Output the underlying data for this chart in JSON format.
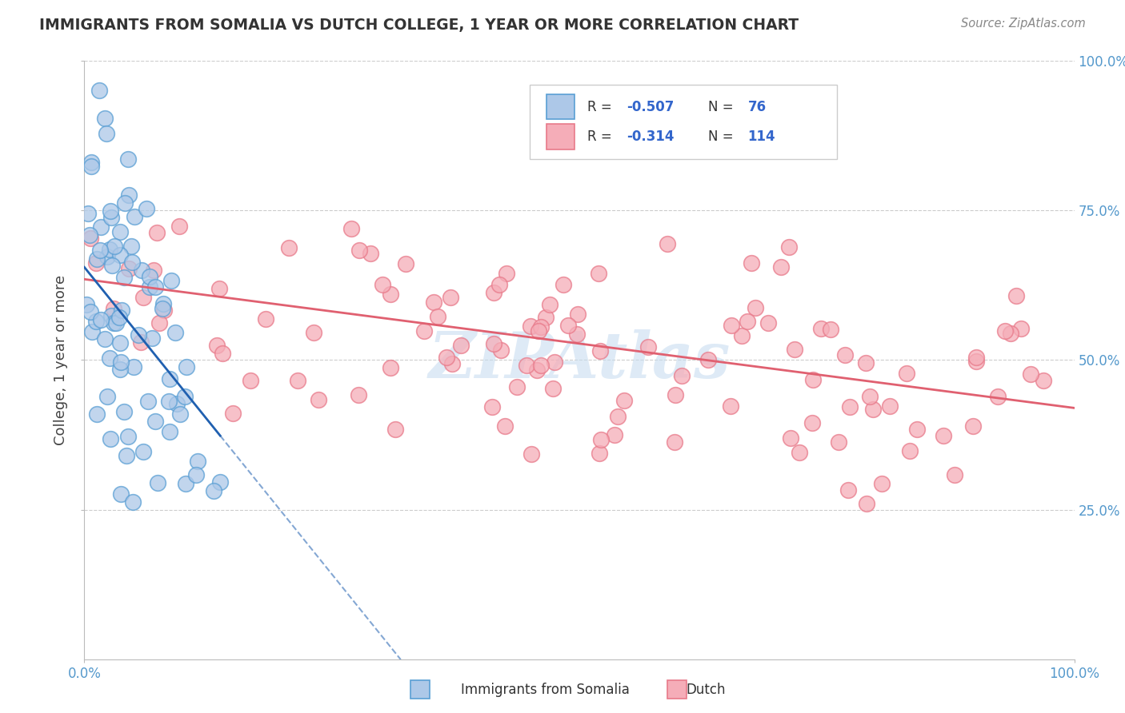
{
  "title": "IMMIGRANTS FROM SOMALIA VS DUTCH COLLEGE, 1 YEAR OR MORE CORRELATION CHART",
  "source": "Source: ZipAtlas.com",
  "ylabel": "College, 1 year or more",
  "xlim": [
    0.0,
    1.0
  ],
  "ylim": [
    0.0,
    1.0
  ],
  "x_ticks": [
    0.0,
    1.0
  ],
  "x_tick_labels": [
    "0.0%",
    "100.0%"
  ],
  "y_ticks": [
    0.25,
    0.5,
    0.75,
    1.0
  ],
  "y_tick_labels": [
    "25.0%",
    "50.0%",
    "75.0%",
    "100.0%"
  ],
  "legend_somalia_R": "-0.507",
  "legend_somalia_N": "76",
  "legend_dutch_R": "-0.314",
  "legend_dutch_N": "114",
  "somalia_fill": "#adc8e8",
  "dutch_fill": "#f5adb8",
  "somalia_edge": "#5a9fd4",
  "dutch_edge": "#e87a8a",
  "somalia_line_color": "#2060b0",
  "dutch_line_color": "#e06070",
  "watermark_color": "#c8ddf0",
  "watermark_text": "ZIPAtlas",
  "background_color": "#ffffff",
  "grid_color": "#cccccc",
  "tick_color": "#5599cc",
  "title_color": "#333333",
  "source_color": "#888888",
  "legend_text_color": "#333333",
  "legend_R_color": "#3366cc",
  "bottom_legend_somalia": "Immigrants from Somalia",
  "bottom_legend_dutch": "Dutch",
  "somalia_line_intercept": 0.655,
  "somalia_line_slope": -2.05,
  "dutch_line_intercept": 0.635,
  "dutch_line_slope": -0.215
}
